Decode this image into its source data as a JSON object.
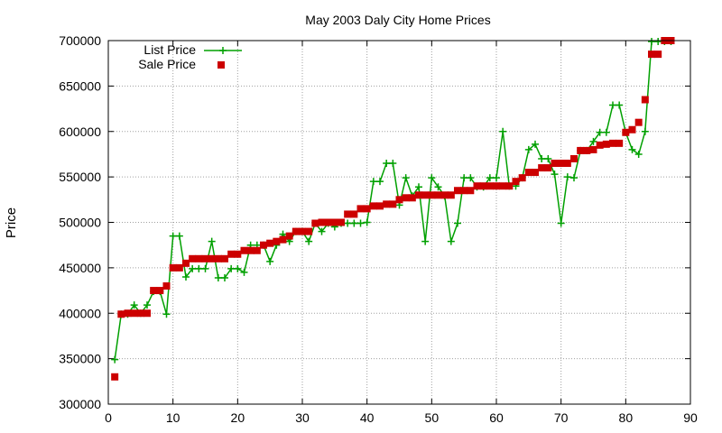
{
  "chart_data": {
    "type": "line",
    "title": "May 2003 Daly City Home Prices",
    "xlabel": "",
    "ylabel": "Price",
    "xlim": [
      0,
      90
    ],
    "ylim": [
      300000,
      700000
    ],
    "x_ticks": [
      0,
      10,
      20,
      30,
      40,
      50,
      60,
      70,
      80,
      90
    ],
    "y_ticks": [
      300000,
      350000,
      400000,
      450000,
      500000,
      550000,
      600000,
      650000,
      700000
    ],
    "grid": true,
    "legend_position": "top-left",
    "series": [
      {
        "name": "List Price",
        "style": "line+cross",
        "color": "#00a000",
        "x": [
          1,
          2,
          3,
          4,
          5,
          6,
          7,
          8,
          9,
          10,
          11,
          12,
          13,
          14,
          15,
          16,
          17,
          18,
          19,
          20,
          21,
          22,
          23,
          24,
          25,
          26,
          27,
          28,
          29,
          30,
          31,
          32,
          33,
          34,
          35,
          36,
          37,
          38,
          39,
          40,
          41,
          42,
          43,
          44,
          45,
          46,
          47,
          48,
          49,
          50,
          51,
          52,
          53,
          54,
          55,
          56,
          57,
          58,
          59,
          60,
          61,
          62,
          63,
          64,
          65,
          66,
          67,
          68,
          69,
          70,
          71,
          72,
          73,
          74,
          75,
          76,
          77,
          78,
          79,
          80,
          81,
          82,
          83,
          84,
          85,
          86,
          87
        ],
        "y": [
          349000,
          399000,
          399000,
          409000,
          400000,
          409000,
          424000,
          424000,
          399000,
          485000,
          485000,
          440000,
          449000,
          449000,
          449000,
          479000,
          439000,
          439000,
          449000,
          449000,
          445000,
          475000,
          475000,
          475000,
          457000,
          475000,
          487000,
          479000,
          490000,
          490000,
          479000,
          499000,
          490000,
          499000,
          495000,
          499000,
          499000,
          499000,
          499000,
          500000,
          545000,
          545000,
          565000,
          565000,
          519000,
          549000,
          529000,
          539000,
          479000,
          549000,
          539000,
          529000,
          479000,
          499000,
          549000,
          549000,
          539000,
          539000,
          549000,
          549000,
          600000,
          540000,
          540000,
          549000,
          580000,
          586000,
          570000,
          570000,
          553000,
          499000,
          550000,
          549000,
          579000,
          579000,
          589000,
          599000,
          599000,
          629000,
          629000,
          599000,
          580000,
          575000,
          600000,
          699000,
          699000,
          699000,
          699000
        ]
      },
      {
        "name": "Sale Price",
        "style": "points",
        "color": "#cc0000",
        "x": [
          1,
          2,
          3,
          4,
          5,
          6,
          7,
          8,
          9,
          10,
          11,
          12,
          13,
          14,
          15,
          16,
          17,
          18,
          19,
          20,
          21,
          22,
          23,
          24,
          25,
          26,
          27,
          28,
          29,
          30,
          31,
          32,
          33,
          34,
          35,
          36,
          37,
          38,
          39,
          40,
          41,
          42,
          43,
          44,
          45,
          46,
          47,
          48,
          49,
          50,
          51,
          52,
          53,
          54,
          55,
          56,
          57,
          58,
          59,
          60,
          61,
          62,
          63,
          64,
          65,
          66,
          67,
          68,
          69,
          70,
          71,
          72,
          73,
          74,
          75,
          76,
          77,
          78,
          79,
          80,
          81,
          82,
          83,
          84,
          85,
          86,
          87
        ],
        "y": [
          330000,
          399000,
          400000,
          400000,
          400000,
          400000,
          425000,
          425000,
          430000,
          450000,
          450000,
          455000,
          460000,
          460000,
          460000,
          460000,
          460000,
          460000,
          465000,
          465000,
          469000,
          469000,
          469000,
          475000,
          477000,
          479000,
          481000,
          485000,
          490000,
          490000,
          490000,
          499000,
          500000,
          500000,
          500000,
          500000,
          509000,
          509000,
          515000,
          515000,
          518000,
          518000,
          520000,
          520000,
          525000,
          527000,
          527000,
          530000,
          530000,
          530000,
          530000,
          530000,
          530000,
          535000,
          535000,
          535000,
          540000,
          540000,
          540000,
          540000,
          540000,
          540000,
          545000,
          549000,
          555000,
          555000,
          560000,
          560000,
          565000,
          565000,
          565000,
          570000,
          579000,
          579000,
          580000,
          585000,
          586000,
          587000,
          587000,
          599000,
          602000,
          610000,
          635000,
          685000,
          685000,
          700000,
          700000
        ]
      }
    ]
  }
}
